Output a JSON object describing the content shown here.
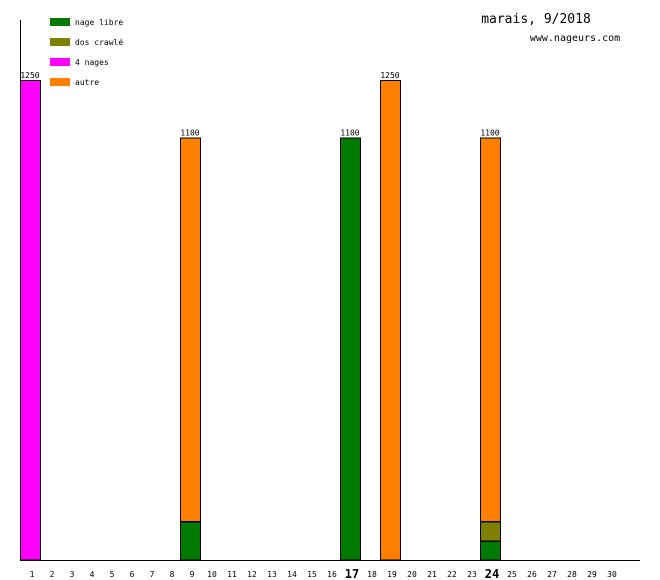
{
  "header": {
    "title": "marais, 9/2018",
    "site": "www.nageurs.com"
  },
  "colors": {
    "nage libre": "#007a00",
    "dos crawlé": "#7f7f00",
    "4 nages": "#ff00ff",
    "autre": "#ff7f00"
  },
  "chart_data": {
    "type": "bar",
    "stacked": true,
    "title": "marais, 9/2018",
    "subtitle": "www.nageurs.com",
    "xlabel": "",
    "ylabel": "",
    "ylim": [
      0,
      1250
    ],
    "grid": false,
    "legend_position": "top-left",
    "categories": [
      "1",
      "2",
      "3",
      "4",
      "5",
      "6",
      "7",
      "8",
      "9",
      "10",
      "11",
      "12",
      "13",
      "14",
      "15",
      "16",
      "17",
      "18",
      "19",
      "20",
      "21",
      "22",
      "23",
      "24",
      "25",
      "26",
      "27",
      "28",
      "29",
      "30"
    ],
    "highlighted_categories": [
      "17",
      "24"
    ],
    "series": [
      {
        "name": "nage libre",
        "values": [
          0,
          0,
          0,
          0,
          0,
          0,
          0,
          0,
          100,
          0,
          0,
          0,
          0,
          0,
          0,
          0,
          1100,
          0,
          0,
          0,
          0,
          0,
          0,
          50,
          0,
          0,
          0,
          0,
          0,
          0
        ]
      },
      {
        "name": "dos crawlé",
        "values": [
          0,
          0,
          0,
          0,
          0,
          0,
          0,
          0,
          0,
          0,
          0,
          0,
          0,
          0,
          0,
          0,
          0,
          0,
          0,
          0,
          0,
          0,
          0,
          50,
          0,
          0,
          0,
          0,
          0,
          0
        ]
      },
      {
        "name": "4 nages",
        "values": [
          1250,
          0,
          0,
          0,
          0,
          0,
          0,
          0,
          0,
          0,
          0,
          0,
          0,
          0,
          0,
          0,
          0,
          0,
          0,
          0,
          0,
          0,
          0,
          0,
          0,
          0,
          0,
          0,
          0,
          0
        ]
      },
      {
        "name": "autre",
        "values": [
          0,
          0,
          0,
          0,
          0,
          0,
          0,
          0,
          1000,
          0,
          0,
          0,
          0,
          0,
          0,
          0,
          0,
          0,
          1250,
          0,
          0,
          0,
          0,
          1000,
          0,
          0,
          0,
          0,
          0,
          0
        ]
      }
    ],
    "total_labels": [
      {
        "category": "1",
        "text": "1250"
      },
      {
        "category": "9",
        "text": "1100"
      },
      {
        "category": "17",
        "text": "1100"
      },
      {
        "category": "19",
        "text": "1250"
      },
      {
        "category": "24",
        "text": "1100"
      }
    ]
  }
}
